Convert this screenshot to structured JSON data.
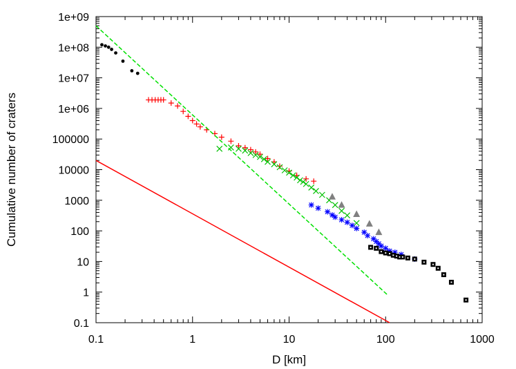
{
  "chart_data": {
    "type": "scatter",
    "title": "",
    "xlabel": "D [km]",
    "ylabel": "Cumulative number of craters",
    "xscale": "log",
    "yscale": "log",
    "xlim": [
      0.1,
      1000
    ],
    "ylim": [
      0.1,
      1000000000
    ],
    "x_tick_labels": [
      "0.1",
      "1",
      "10",
      "100",
      "1000"
    ],
    "y_tick_labels": [
      "0.1",
      "1",
      "10",
      "100",
      "1000",
      "10000",
      "100000",
      "1e+06",
      "1e+07",
      "1e+08",
      "1e+09"
    ],
    "grid": false,
    "legend": "none",
    "series": [
      {
        "marker": "dot",
        "color": "#000000",
        "points": [
          [
            0.115,
            120000000.0
          ],
          [
            0.125,
            110000000.0
          ],
          [
            0.135,
            100000000.0
          ],
          [
            0.145,
            85000000.0
          ],
          [
            0.16,
            65000000.0
          ],
          [
            0.19,
            35000000.0
          ],
          [
            0.235,
            17000000.0
          ],
          [
            0.27,
            14000000.0
          ]
        ]
      },
      {
        "marker": "plus",
        "color": "#ff0000",
        "points": [
          [
            0.35,
            1900000.0
          ],
          [
            0.38,
            1900000.0
          ],
          [
            0.41,
            1900000.0
          ],
          [
            0.44,
            1900000.0
          ],
          [
            0.47,
            1900000.0
          ],
          [
            0.5,
            1900000.0
          ],
          [
            0.6,
            1500000.0
          ],
          [
            0.7,
            1200000.0
          ],
          [
            0.8,
            800000.0
          ],
          [
            0.9,
            550000.0
          ],
          [
            1.0,
            400000.0
          ],
          [
            1.1,
            310000.0
          ],
          [
            1.2,
            250000.0
          ],
          [
            1.4,
            200000.0
          ],
          [
            1.7,
            150000.0
          ],
          [
            2.0,
            115000.0
          ],
          [
            2.5,
            85000.0
          ],
          [
            3.0,
            60000.0
          ],
          [
            3.5,
            52000.0
          ],
          [
            4.0,
            45000.0
          ],
          [
            4.5,
            38000.0
          ],
          [
            5.0,
            32000.0
          ],
          [
            6.0,
            23000.0
          ],
          [
            7.0,
            18000.0
          ],
          [
            8.0,
            13000.0
          ],
          [
            10.0,
            9000.0
          ],
          [
            12.0,
            6500.0
          ],
          [
            15.0,
            5000.0
          ],
          [
            18.0,
            4200.0
          ]
        ]
      },
      {
        "marker": "cross",
        "color": "#00c000",
        "points": [
          [
            1.9,
            48000.0
          ],
          [
            2.5,
            53000.0
          ],
          [
            3.0,
            48000.0
          ],
          [
            3.5,
            42000.0
          ],
          [
            4.0,
            35000.0
          ],
          [
            4.5,
            30000.0
          ],
          [
            5.0,
            26000.0
          ],
          [
            5.5,
            22000.0
          ],
          [
            6.0,
            18000.0
          ],
          [
            7.0,
            15000.0
          ],
          [
            8.0,
            12000.0
          ],
          [
            9.0,
            9500.0
          ],
          [
            10.0,
            8000.0
          ],
          [
            11.0,
            6500.0
          ],
          [
            12.0,
            5500.0
          ],
          [
            13.0,
            4500.0
          ],
          [
            14.0,
            4000.0
          ],
          [
            15.0,
            3400.0
          ],
          [
            17.0,
            2600.0
          ],
          [
            19.0,
            2000.0
          ],
          [
            22.0,
            1500.0
          ],
          [
            26.0,
            1000.0
          ],
          [
            30.0,
            700
          ],
          [
            35.0,
            450
          ],
          [
            40.0,
            320
          ],
          [
            50.0,
            180
          ]
        ]
      },
      {
        "marker": "triangle",
        "color": "#808080",
        "points": [
          [
            28.0,
            1300.0
          ],
          [
            35.0,
            700
          ],
          [
            50.0,
            350
          ],
          [
            68.0,
            170
          ],
          [
            85.0,
            90
          ]
        ]
      },
      {
        "marker": "star",
        "color": "#0000ff",
        "points": [
          [
            17.0,
            700
          ],
          [
            20.0,
            550
          ],
          [
            25.0,
            420
          ],
          [
            28.0,
            330
          ],
          [
            30.0,
            280
          ],
          [
            35.0,
            230
          ],
          [
            40.0,
            190
          ],
          [
            45.0,
            150
          ],
          [
            50.0,
            120
          ],
          [
            60.0,
            90
          ],
          [
            65.0,
            70
          ],
          [
            75.0,
            55
          ],
          [
            80.0,
            45
          ],
          [
            85.0,
            38
          ],
          [
            90.0,
            32
          ],
          [
            100.0,
            27
          ],
          [
            110.0,
            22
          ],
          [
            125.0,
            20
          ],
          [
            145.0,
            17
          ],
          [
            200.0,
            12
          ]
        ]
      },
      {
        "marker": "square",
        "color": "#000000",
        "points": [
          [
            70.0,
            29
          ],
          [
            80.0,
            27
          ],
          [
            90.0,
            21
          ],
          [
            100.0,
            19
          ],
          [
            110.0,
            18
          ],
          [
            120.0,
            16
          ],
          [
            130.0,
            15
          ],
          [
            140.0,
            14
          ],
          [
            150.0,
            14
          ],
          [
            170.0,
            13
          ],
          [
            200.0,
            12
          ],
          [
            250.0,
            9.5
          ],
          [
            310.0,
            8
          ],
          [
            350.0,
            6
          ],
          [
            400.0,
            3.7
          ],
          [
            480.0,
            2.1
          ],
          [
            680.0,
            0.55
          ]
        ]
      },
      {
        "line": "dashed",
        "color": "#00e000",
        "points": [
          [
            0.1,
            500000000.0
          ],
          [
            105.0,
            0.8
          ]
        ]
      },
      {
        "line": "solid",
        "color": "#ff0000",
        "points": [
          [
            0.1,
            20000.0
          ],
          [
            110.0,
            0.1
          ]
        ]
      }
    ]
  }
}
